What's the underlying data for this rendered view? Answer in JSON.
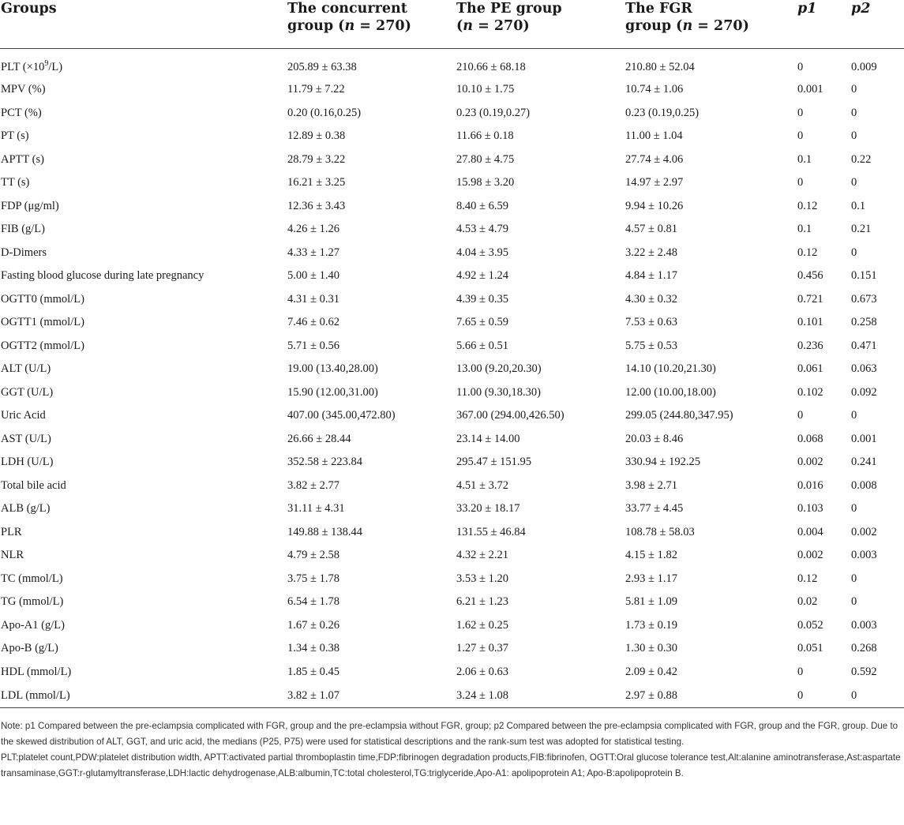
{
  "table": {
    "headers": [
      {
        "line1": "Groups",
        "line2": ""
      },
      {
        "line1": "The concurrent",
        "line2": "group (n = 270)"
      },
      {
        "line1": "The PE group",
        "line2": "(n = 270)"
      },
      {
        "line1": "The FGR",
        "line2": "group (n = 270)"
      },
      {
        "line1": "p1",
        "line2": ""
      },
      {
        "line1": "p2",
        "line2": ""
      }
    ],
    "rows": [
      {
        "name": "PLT (×10",
        "sup": "9",
        "unit_tail": "/L)",
        "c1": "205.89 ± 63.38",
        "c2": "210.66 ± 68.18",
        "c3": "210.80 ± 52.04",
        "p1": "0",
        "p2": "0.009"
      },
      {
        "name": "MPV (%)",
        "c1": "11.79 ± 7.22",
        "c2": "10.10 ± 1.75",
        "c3": "10.74 ± 1.06",
        "p1": "0.001",
        "p2": "0"
      },
      {
        "name": "PCT (%)",
        "c1": "0.20 (0.16,0.25)",
        "c2": "0.23 (0.19,0.27)",
        "c3": "0.23 (0.19,0.25)",
        "p1": "0",
        "p2": "0"
      },
      {
        "name": "PT (s)",
        "c1": "12.89 ± 0.38",
        "c2": "11.66 ± 0.18",
        "c3": "11.00 ± 1.04",
        "p1": "0",
        "p2": "0"
      },
      {
        "name": "APTT (s)",
        "c1": "28.79 ± 3.22",
        "c2": "27.80 ± 4.75",
        "c3": "27.74 ± 4.06",
        "p1": "0.1",
        "p2": "0.22"
      },
      {
        "name": "TT (s)",
        "c1": "16.21 ± 3.25",
        "c2": "15.98 ± 3.20",
        "c3": "14.97 ± 2.97",
        "p1": "0",
        "p2": "0"
      },
      {
        "name": "FDP (μg/ml)",
        "c1": "12.36 ± 3.43",
        "c2": "8.40 ± 6.59",
        "c3": "9.94 ± 10.26",
        "p1": "0.12",
        "p2": "0.1"
      },
      {
        "name": "FIB (g/L)",
        "c1": "4.26 ± 1.26",
        "c2": "4.53 ± 4.79",
        "c3": "4.57 ± 0.81",
        "p1": "0.1",
        "p2": "0.21"
      },
      {
        "name": "D-Dimers",
        "c1": "4.33 ± 1.27",
        "c2": "4.04 ± 3.95",
        "c3": "3.22 ± 2.48",
        "p1": "0.12",
        "p2": "0"
      },
      {
        "name": "Fasting blood glucose during late pregnancy",
        "c1": "5.00 ± 1.40",
        "c2": "4.92 ± 1.24",
        "c3": "4.84 ± 1.17",
        "p1": "0.456",
        "p2": "0.151"
      },
      {
        "name": "OGTT0 (mmol/L)",
        "c1": "4.31 ± 0.31",
        "c2": "4.39 ± 0.35",
        "c3": "4.30 ± 0.32",
        "p1": "0.721",
        "p2": "0.673"
      },
      {
        "name": "OGTT1 (mmol/L)",
        "c1": "7.46 ± 0.62",
        "c2": "7.65 ± 0.59",
        "c3": "7.53 ± 0.63",
        "p1": "0.101",
        "p2": "0.258"
      },
      {
        "name": "OGTT2 (mmol/L)",
        "c1": "5.71 ± 0.56",
        "c2": "5.66 ± 0.51",
        "c3": "5.75 ± 0.53",
        "p1": "0.236",
        "p2": "0.471"
      },
      {
        "name": "ALT (U/L)",
        "c1": "19.00 (13.40,28.00)",
        "c2": "13.00 (9.20,20.30)",
        "c3": "14.10 (10.20,21.30)",
        "p1": "0.061",
        "p2": "0.063"
      },
      {
        "name": "GGT (U/L)",
        "c1": "15.90 (12.00,31.00)",
        "c2": "11.00 (9.30,18.30)",
        "c3": "12.00 (10.00,18.00)",
        "p1": "0.102",
        "p2": "0.092"
      },
      {
        "name": "Uric Acid",
        "c1": "407.00 (345.00,472.80)",
        "c2": "367.00 (294.00,426.50)",
        "c3": "299.05 (244.80,347.95)",
        "p1": "0",
        "p2": "0"
      },
      {
        "name": "AST (U/L)",
        "c1": "26.66 ± 28.44",
        "c2": "23.14 ± 14.00",
        "c3": "20.03 ± 8.46",
        "p1": "0.068",
        "p2": "0.001"
      },
      {
        "name": "LDH (U/L)",
        "c1": "352.58 ± 223.84",
        "c2": "295.47 ± 151.95",
        "c3": "330.94 ± 192.25",
        "p1": "0.002",
        "p2": "0.241"
      },
      {
        "name": "Total bile acid",
        "c1": "3.82 ± 2.77",
        "c2": "4.51 ± 3.72",
        "c3": "3.98 ± 2.71",
        "p1": "0.016",
        "p2": "0.008"
      },
      {
        "name": "ALB (g/L)",
        "c1": "31.11 ± 4.31",
        "c2": "33.20 ± 18.17",
        "c3": "33.77 ± 4.45",
        "p1": "0.103",
        "p2": "0"
      },
      {
        "name": "PLR",
        "c1": "149.88 ± 138.44",
        "c2": "131.55 ± 46.84",
        "c3": "108.78 ± 58.03",
        "p1": "0.004",
        "p2": "0.002"
      },
      {
        "name": "NLR",
        "c1": "4.79 ± 2.58",
        "c2": "4.32 ± 2.21",
        "c3": "4.15 ± 1.82",
        "p1": "0.002",
        "p2": "0.003"
      },
      {
        "name": "TC (mmol/L)",
        "c1": "3.75 ± 1.78",
        "c2": "3.53 ± 1.20",
        "c3": "2.93 ± 1.17",
        "p1": "0.12",
        "p2": "0"
      },
      {
        "name": "TG (mmol/L)",
        "c1": "6.54 ± 1.78",
        "c2": "6.21 ± 1.23",
        "c3": "5.81 ± 1.09",
        "p1": "0.02",
        "p2": "0"
      },
      {
        "name": "Apo-A1 (g/L)",
        "c1": "1.67 ± 0.26",
        "c2": "1.62 ± 0.25",
        "c3": "1.73 ± 0.19",
        "p1": "0.052",
        "p2": "0.003"
      },
      {
        "name": "Apo-B (g/L)",
        "c1": "1.34 ± 0.38",
        "c2": "1.27 ± 0.37",
        "c3": "1.30 ± 0.30",
        "p1": "0.051",
        "p2": "0.268"
      },
      {
        "name": "HDL (mmol/L)",
        "c1": "1.85 ± 0.45",
        "c2": "2.06 ± 0.63",
        "c3": "2.09 ± 0.42",
        "p1": "0",
        "p2": "0.592"
      },
      {
        "name": "LDL (mmol/L)",
        "c1": "3.82 ± 1.07",
        "c2": "3.24 ± 1.08",
        "c3": "2.97 ± 0.88",
        "p1": "0",
        "p2": "0"
      }
    ]
  },
  "notes": {
    "note1": "Note: p1 Compared between the pre-eclampsia complicated with FGR, group and the pre-eclampsia without FGR, group; p2 Compared between the pre-eclampsia complicated with FGR, group and the FGR, group. Due to the skewed distribution of ALT, GGT, and uric acid, the medians (P25, P75) were used for statistical descriptions and the rank-sum test was adopted for statistical testing.",
    "note2": "PLT:platelet count,PDW:platelet distribution width, APTT:activated partial thromboplastin time,FDP:fibrinogen degradation products,FIB:fibrinofen, OGTT:Oral glucose tolerance test,Alt:alanine aminotransferase,Ast:aspartate transaminase,GGT:r-glutamyltransferase,LDH:lactic dehydrogenase,ALB:albumin,TC:total cholesterol,TG:triglyceride,Apo-A1: apolipoprotein A1; Apo-B:apolipoprotein B."
  }
}
